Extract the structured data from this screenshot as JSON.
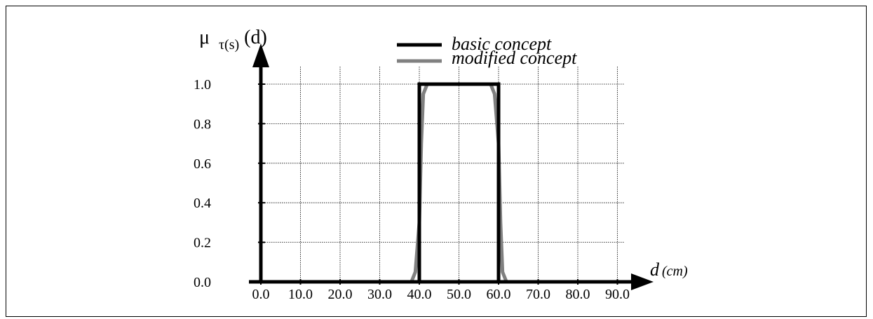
{
  "chart_data": {
    "type": "line",
    "ylabel": {
      "prefix": "μ",
      "sub": "τ(s)",
      "suffix": "(d)"
    },
    "xlabel": {
      "var": "d",
      "unit": "(cm)"
    },
    "xlim": [
      0,
      90
    ],
    "ylim": [
      0,
      1
    ],
    "x_ticks": [
      "0.0",
      "10.0",
      "20.0",
      "30.0",
      "40.0",
      "50.0",
      "60.0",
      "70.0",
      "80.0",
      "90.0"
    ],
    "y_ticks": [
      "0.0",
      "0.2",
      "0.4",
      "0.6",
      "0.8",
      "1.0"
    ],
    "grid": true,
    "legend_position": "top-center",
    "series": [
      {
        "name": "basic concept",
        "color": "#000000",
        "x": [
          0,
          40,
          40,
          60,
          60,
          95
        ],
        "y": [
          0,
          0,
          1,
          1,
          0,
          0
        ]
      },
      {
        "name": "modified concept",
        "color": "#808080",
        "x": [
          0,
          38,
          39,
          40,
          40.5,
          41,
          42,
          58,
          59,
          60,
          60.5,
          61,
          62,
          95
        ],
        "y": [
          0,
          0,
          0.05,
          0.3,
          0.7,
          0.95,
          1,
          1,
          0.95,
          0.7,
          0.3,
          0.05,
          0,
          0
        ]
      }
    ]
  }
}
